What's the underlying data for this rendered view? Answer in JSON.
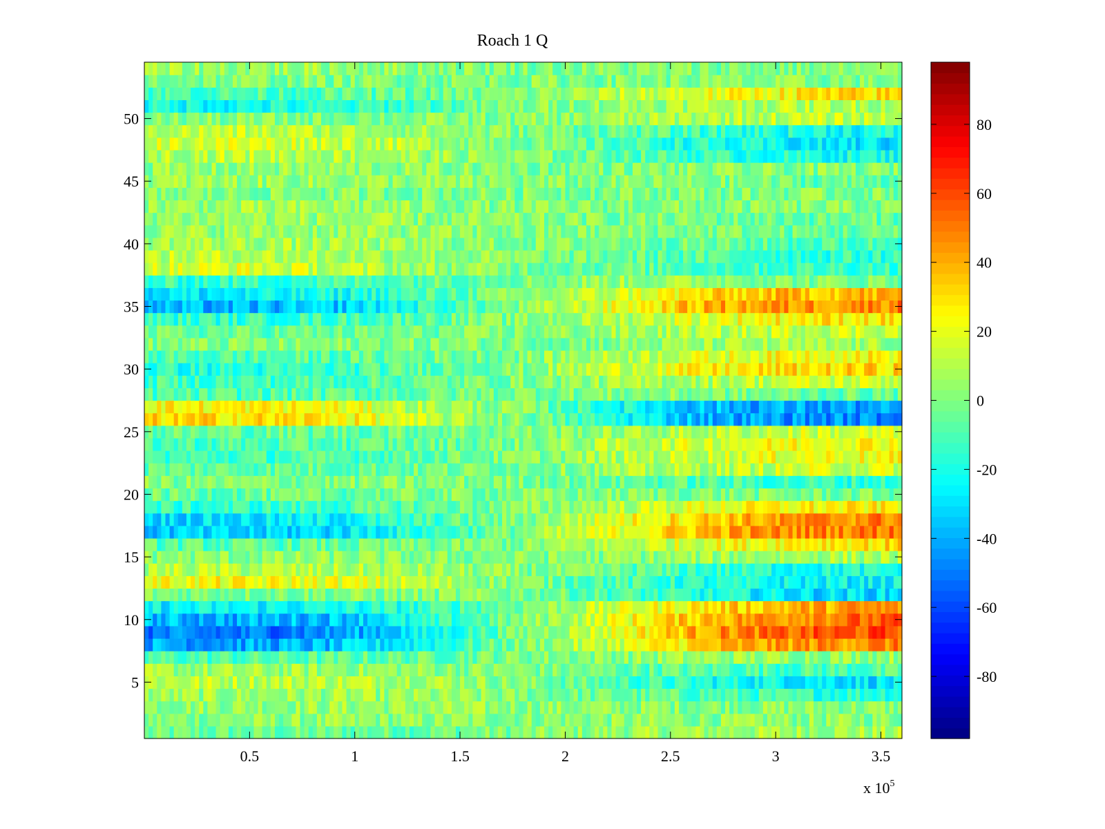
{
  "chart_data": {
    "type": "heatmap",
    "title": "Roach 1 Q",
    "xlabel": "",
    "ylabel": "",
    "xlim": [
      0,
      360000
    ],
    "ylim": [
      0.5,
      54.5
    ],
    "x_multiplier_label": "x 10",
    "x_multiplier_exponent": "5",
    "x_ticks": [
      {
        "value": 50000,
        "label": "0.5"
      },
      {
        "value": 100000,
        "label": "1"
      },
      {
        "value": 150000,
        "label": "1.5"
      },
      {
        "value": 200000,
        "label": "2"
      },
      {
        "value": 250000,
        "label": "2.5"
      },
      {
        "value": 300000,
        "label": "3"
      },
      {
        "value": 350000,
        "label": "3.5"
      }
    ],
    "y_ticks": [
      {
        "value": 5,
        "label": "5"
      },
      {
        "value": 10,
        "label": "10"
      },
      {
        "value": 15,
        "label": "15"
      },
      {
        "value": 20,
        "label": "20"
      },
      {
        "value": 25,
        "label": "25"
      },
      {
        "value": 30,
        "label": "30"
      },
      {
        "value": 35,
        "label": "35"
      },
      {
        "value": 40,
        "label": "40"
      },
      {
        "value": 45,
        "label": "45"
      },
      {
        "value": 50,
        "label": "50"
      }
    ],
    "colorbar": {
      "colormap": "jet",
      "clim": [
        -98,
        98
      ],
      "ticks": [
        {
          "value": 80,
          "label": "80"
        },
        {
          "value": 60,
          "label": "60"
        },
        {
          "value": 40,
          "label": "40"
        },
        {
          "value": 20,
          "label": "20"
        },
        {
          "value": 0,
          "label": "0"
        },
        {
          "value": -20,
          "label": "-20"
        },
        {
          "value": -40,
          "label": "-40"
        },
        {
          "value": -60,
          "label": "-60"
        },
        {
          "value": -80,
          "label": "-80"
        }
      ]
    },
    "x_sample_points": [
      0,
      45000,
      90000,
      135000,
      180000,
      225000,
      270000,
      315000,
      360000
    ],
    "rows": [
      {
        "y": 1,
        "values": [
          -5,
          -5,
          -5,
          -4,
          0,
          4,
          6,
          7,
          7
        ]
      },
      {
        "y": 2,
        "values": [
          0,
          2,
          2,
          2,
          2,
          2,
          2,
          2,
          2
        ]
      },
      {
        "y": 3,
        "values": [
          4,
          5,
          5,
          4,
          3,
          2,
          2,
          2,
          2
        ]
      },
      {
        "y": 4,
        "values": [
          5,
          5,
          5,
          3,
          0,
          -5,
          -10,
          -15,
          -15
        ]
      },
      {
        "y": 5,
        "values": [
          12,
          12,
          12,
          10,
          0,
          -10,
          -20,
          -25,
          -30
        ]
      },
      {
        "y": 6,
        "values": [
          5,
          5,
          5,
          3,
          0,
          -5,
          -8,
          -10,
          -10
        ]
      },
      {
        "y": 7,
        "values": [
          -10,
          -10,
          -8,
          -5,
          0,
          3,
          5,
          5,
          5
        ]
      },
      {
        "y": 8,
        "values": [
          -40,
          -42,
          -38,
          -20,
          0,
          15,
          35,
          45,
          48
        ]
      },
      {
        "y": 9,
        "values": [
          -50,
          -52,
          -45,
          -25,
          0,
          20,
          45,
          55,
          60
        ]
      },
      {
        "y": 10,
        "values": [
          -38,
          -40,
          -35,
          -20,
          0,
          20,
          40,
          50,
          55
        ]
      },
      {
        "y": 11,
        "values": [
          -25,
          -25,
          -22,
          -15,
          0,
          15,
          30,
          40,
          45
        ]
      },
      {
        "y": 12,
        "values": [
          0,
          0,
          0,
          0,
          0,
          -10,
          -20,
          -30,
          -30
        ]
      },
      {
        "y": 13,
        "values": [
          22,
          22,
          20,
          10,
          0,
          -10,
          -20,
          -25,
          -25
        ]
      },
      {
        "y": 14,
        "values": [
          10,
          10,
          8,
          5,
          0,
          -5,
          -15,
          -20,
          -20
        ]
      },
      {
        "y": 15,
        "values": [
          2,
          2,
          2,
          0,
          0,
          2,
          5,
          8,
          8
        ]
      },
      {
        "y": 16,
        "values": [
          -8,
          -8,
          -6,
          -3,
          0,
          10,
          20,
          30,
          30
        ]
      },
      {
        "y": 17,
        "values": [
          -35,
          -35,
          -30,
          -15,
          0,
          20,
          40,
          48,
          52
        ]
      },
      {
        "y": 18,
        "values": [
          -30,
          -30,
          -25,
          -12,
          0,
          20,
          35,
          45,
          50
        ]
      },
      {
        "y": 19,
        "values": [
          -15,
          -15,
          -12,
          -5,
          0,
          10,
          20,
          25,
          25
        ]
      },
      {
        "y": 20,
        "values": [
          -5,
          -5,
          -5,
          -2,
          0,
          0,
          0,
          -2,
          -2
        ]
      },
      {
        "y": 21,
        "values": [
          0,
          0,
          0,
          0,
          0,
          -5,
          -10,
          -15,
          -15
        ]
      },
      {
        "y": 22,
        "values": [
          -5,
          -5,
          -5,
          -3,
          0,
          5,
          10,
          15,
          15
        ]
      },
      {
        "y": 23,
        "values": [
          -12,
          -12,
          -10,
          -5,
          0,
          8,
          15,
          22,
          22
        ]
      },
      {
        "y": 24,
        "values": [
          -10,
          -10,
          -8,
          -5,
          0,
          10,
          18,
          25,
          25
        ]
      },
      {
        "y": 25,
        "values": [
          -5,
          -5,
          -5,
          -2,
          0,
          5,
          10,
          15,
          15
        ]
      },
      {
        "y": 26,
        "values": [
          30,
          30,
          28,
          10,
          0,
          -20,
          -40,
          -45,
          -48
        ]
      },
      {
        "y": 27,
        "values": [
          25,
          25,
          22,
          8,
          0,
          -20,
          -38,
          -42,
          -45
        ]
      },
      {
        "y": 28,
        "values": [
          -10,
          -10,
          -8,
          -5,
          0,
          0,
          0,
          -5,
          -5
        ]
      },
      {
        "y": 29,
        "values": [
          -12,
          -12,
          -10,
          -5,
          0,
          5,
          10,
          15,
          15
        ]
      },
      {
        "y": 30,
        "values": [
          -18,
          -18,
          -15,
          -5,
          0,
          15,
          25,
          30,
          32
        ]
      },
      {
        "y": 31,
        "values": [
          -10,
          -10,
          -8,
          -3,
          0,
          10,
          18,
          25,
          25
        ]
      },
      {
        "y": 32,
        "values": [
          0,
          0,
          0,
          0,
          0,
          0,
          5,
          5,
          5
        ]
      },
      {
        "y": 33,
        "values": [
          -5,
          -5,
          -5,
          -3,
          0,
          5,
          10,
          15,
          15
        ]
      },
      {
        "y": 34,
        "values": [
          -15,
          -15,
          -12,
          -5,
          0,
          10,
          20,
          28,
          28
        ]
      },
      {
        "y": 35,
        "values": [
          -40,
          -40,
          -35,
          -15,
          0,
          20,
          40,
          45,
          50
        ]
      },
      {
        "y": 36,
        "values": [
          -28,
          -28,
          -22,
          -10,
          0,
          15,
          30,
          38,
          38
        ]
      },
      {
        "y": 37,
        "values": [
          -15,
          -15,
          -12,
          -5,
          0,
          5,
          5,
          0,
          0
        ]
      },
      {
        "y": 38,
        "values": [
          15,
          18,
          12,
          5,
          0,
          -5,
          -10,
          -12,
          -12
        ]
      },
      {
        "y": 39,
        "values": [
          10,
          12,
          8,
          5,
          0,
          -5,
          -10,
          -15,
          -15
        ]
      },
      {
        "y": 40,
        "values": [
          8,
          8,
          6,
          3,
          0,
          0,
          -5,
          -10,
          -10
        ]
      },
      {
        "y": 41,
        "values": [
          5,
          5,
          5,
          3,
          0,
          0,
          0,
          -5,
          -5
        ]
      },
      {
        "y": 42,
        "values": [
          5,
          5,
          5,
          2,
          0,
          0,
          -2,
          -5,
          -5
        ]
      },
      {
        "y": 43,
        "values": [
          5,
          5,
          5,
          3,
          0,
          0,
          0,
          0,
          0
        ]
      },
      {
        "y": 44,
        "values": [
          0,
          0,
          0,
          0,
          0,
          0,
          0,
          0,
          0
        ]
      },
      {
        "y": 45,
        "values": [
          5,
          5,
          5,
          3,
          0,
          0,
          0,
          -5,
          -5
        ]
      },
      {
        "y": 46,
        "values": [
          3,
          3,
          3,
          2,
          0,
          0,
          0,
          0,
          0
        ]
      },
      {
        "y": 47,
        "values": [
          10,
          12,
          10,
          5,
          0,
          -5,
          -15,
          -20,
          -20
        ]
      },
      {
        "y": 48,
        "values": [
          15,
          18,
          15,
          8,
          0,
          -10,
          -20,
          -28,
          -30
        ]
      },
      {
        "y": 49,
        "values": [
          12,
          12,
          10,
          5,
          0,
          -5,
          -15,
          -20,
          -22
        ]
      },
      {
        "y": 50,
        "values": [
          0,
          0,
          0,
          0,
          0,
          5,
          10,
          12,
          12
        ]
      },
      {
        "y": 51,
        "values": [
          -20,
          -22,
          -18,
          -10,
          0,
          5,
          10,
          10,
          10
        ]
      },
      {
        "y": 52,
        "values": [
          -10,
          -10,
          -8,
          -5,
          0,
          10,
          20,
          28,
          30
        ]
      },
      {
        "y": 53,
        "values": [
          0,
          0,
          0,
          0,
          0,
          0,
          0,
          0,
          0
        ]
      },
      {
        "y": 54,
        "values": [
          5,
          5,
          5,
          3,
          0,
          0,
          0,
          0,
          0
        ]
      }
    ]
  }
}
